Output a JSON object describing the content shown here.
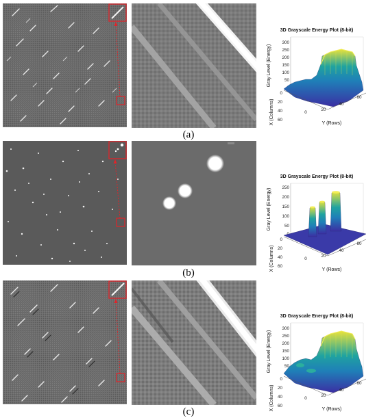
{
  "figure": {
    "rows": [
      {
        "label": "(a)",
        "scene": "streaks",
        "plot": {
          "title": "3D Grayscale Energy Plot (8-bit)",
          "zlabel": "Gray Level (Energy)",
          "xlabel": "X (Columns)",
          "ylabel": "Y (Rows)",
          "zticks": [
            "300",
            "250",
            "200",
            "150",
            "100",
            "50",
            "0"
          ],
          "xticks": [
            "0",
            "20",
            "40",
            "60"
          ],
          "yticks": [
            "0",
            "20",
            "40",
            "60"
          ]
        }
      },
      {
        "label": "(b)",
        "scene": "dots",
        "plot": {
          "title": "3D Grayscale Energy Plot (8-bit)",
          "zlabel": "Gray Level (Energy)",
          "xlabel": "X (Columns)",
          "ylabel": "Y (Rows)",
          "zticks": [
            "250",
            "200",
            "150",
            "100",
            "50",
            "0"
          ],
          "xticks": [
            "0",
            "20",
            "40",
            "60"
          ],
          "yticks": [
            "0",
            "20",
            "40",
            "60"
          ]
        }
      },
      {
        "label": "(c)",
        "scene": "streaks",
        "plot": {
          "title": "3D Grayscale Energy Plot (8-bit)",
          "zlabel": "Gray Level (Energy)",
          "xlabel": "X (Columns)",
          "ylabel": "Y (Rows)",
          "zticks": [
            "300",
            "250",
            "200",
            "150",
            "100",
            "50",
            "0"
          ],
          "xticks": [
            "0",
            "20",
            "40",
            "60"
          ],
          "yticks": [
            "0",
            "20",
            "40",
            "60"
          ]
        }
      }
    ],
    "colors": {
      "highlight_box": "#e0242a",
      "arrow": "#e0242a",
      "surface_low": "#3b2fa3",
      "surface_mid": "#1fa3a0",
      "surface_high": "#e8e23a",
      "plane_dots": "#3a3aa8"
    }
  }
}
